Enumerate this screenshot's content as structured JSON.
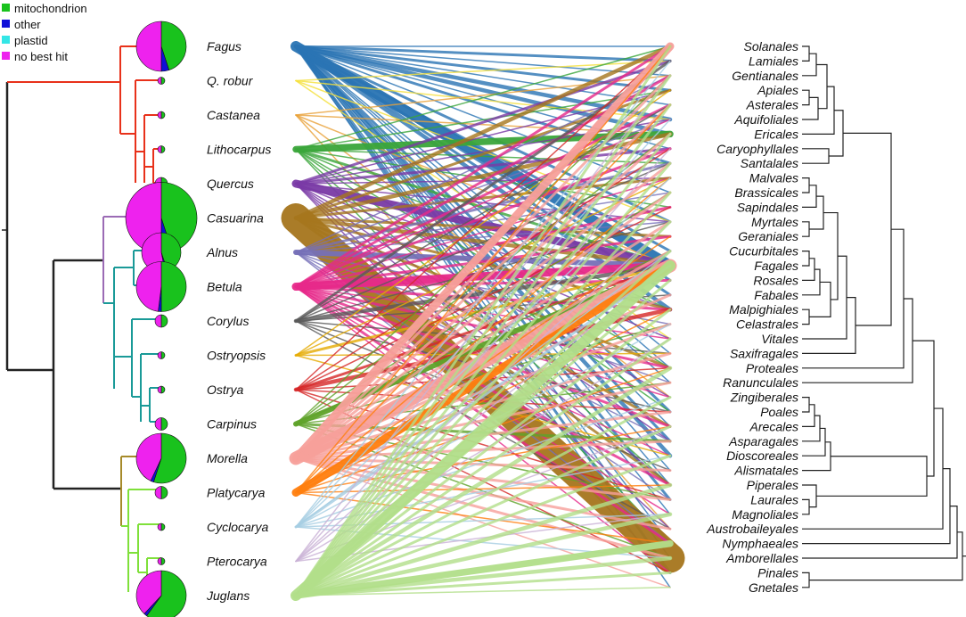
{
  "legend": [
    {
      "label": "mitochondrion",
      "color": "#19c21d"
    },
    {
      "label": "other",
      "color": "#1010d8"
    },
    {
      "label": "plastid",
      "color": "#33e6e6"
    },
    {
      "label": "no best hit",
      "color": "#ee22ee"
    }
  ],
  "left_taxa": [
    {
      "name": "Fagus",
      "color": "#2a74b4",
      "size": 3,
      "pie": [
        0.45,
        0.05,
        0.0,
        0.5
      ]
    },
    {
      "name": "Q. robur",
      "color": "#f5e03a",
      "size": 0,
      "pie": [
        0.5,
        0.0,
        0.0,
        0.5
      ]
    },
    {
      "name": "Castanea",
      "color": "#e9a23a",
      "size": 0,
      "pie": [
        0.5,
        0.0,
        0.0,
        0.5
      ]
    },
    {
      "name": "Lithocarpus",
      "color": "#3aa63a",
      "size": 0,
      "pie": [
        0.5,
        0.0,
        0.0,
        0.5
      ]
    },
    {
      "name": "Quercus",
      "color": "#7a3aa6",
      "size": 1,
      "pie": [
        0.5,
        0.0,
        0.0,
        0.5
      ]
    },
    {
      "name": "Casuarina",
      "color": "#a6761d",
      "size": 4,
      "pie": [
        0.45,
        0.05,
        0.0,
        0.5
      ]
    },
    {
      "name": "Alnus",
      "color": "#7670b8",
      "size": 2,
      "pie": [
        0.45,
        0.02,
        0.0,
        0.53
      ]
    },
    {
      "name": "Betula",
      "color": "#e7298a",
      "size": 3,
      "pie": [
        0.5,
        0.02,
        0.0,
        0.48
      ]
    },
    {
      "name": "Corylus",
      "color": "#5a5a5a",
      "size": 1,
      "pie": [
        0.5,
        0.0,
        0.0,
        0.5
      ]
    },
    {
      "name": "Ostryopsis",
      "color": "#e6ab02",
      "size": 0,
      "pie": [
        0.5,
        0.0,
        0.0,
        0.5
      ]
    },
    {
      "name": "Ostrya",
      "color": "#d62728",
      "size": 0,
      "pie": [
        0.5,
        0.0,
        0.0,
        0.5
      ]
    },
    {
      "name": "Carpinus",
      "color": "#5fa32a",
      "size": 1,
      "pie": [
        0.5,
        0.0,
        0.0,
        0.5
      ]
    },
    {
      "name": "Morella",
      "color": "#f7a09a",
      "size": 3,
      "pie": [
        0.55,
        0.02,
        0.0,
        0.43
      ]
    },
    {
      "name": "Platycarya",
      "color": "#ff7f0e",
      "size": 1,
      "pie": [
        0.5,
        0.0,
        0.0,
        0.5
      ]
    },
    {
      "name": "Cyclocarya",
      "color": "#a6cee3",
      "size": 0,
      "pie": [
        0.5,
        0.0,
        0.0,
        0.5
      ]
    },
    {
      "name": "Pterocarya",
      "color": "#cab2d6",
      "size": 0,
      "pie": [
        0.5,
        0.0,
        0.0,
        0.5
      ]
    },
    {
      "name": "Juglans",
      "color": "#b2df8a",
      "size": 3,
      "pie": [
        0.6,
        0.02,
        0.0,
        0.38
      ]
    }
  ],
  "right_orders": [
    "Solanales",
    "Lamiales",
    "Gentianales",
    "Apiales",
    "Asterales",
    "Aquifoliales",
    "Ericales",
    "Caryophyllales",
    "Santalales",
    "Malvales",
    "Brassicales",
    "Sapindales",
    "Myrtales",
    "Geraniales",
    "Cucurbitales",
    "Fagales",
    "Rosales",
    "Fabales",
    "Malpighiales",
    "Celastrales",
    "Vitales",
    "Saxifragales",
    "Proteales",
    "Ranunculales",
    "Zingiberales",
    "Poales",
    "Arecales",
    "Asparagales",
    "Dioscoreales",
    "Alismatales",
    "Piperales",
    "Laurales",
    "Magnoliales",
    "Austrobaileyales",
    "Nymphaeales",
    "Amborellales",
    "Pinales",
    "Gnetales"
  ],
  "links": [
    {
      "from": 0,
      "to": [
        0,
        1,
        2,
        3,
        4,
        5,
        6,
        7,
        8,
        10,
        12,
        14,
        15,
        16,
        17,
        18,
        21,
        22,
        23,
        25,
        26,
        27,
        28,
        29,
        30,
        31,
        32,
        34,
        35,
        36,
        37
      ],
      "w": [
        1,
        2,
        1,
        2,
        1,
        3,
        3,
        1,
        2,
        1,
        2,
        2,
        8,
        2,
        2,
        3,
        1,
        1,
        1,
        2,
        1,
        2,
        3,
        1,
        1,
        2,
        1,
        1,
        1,
        2,
        1
      ]
    },
    {
      "from": 1,
      "to": [
        1,
        5,
        12,
        20
      ],
      "w": [
        1,
        1,
        1,
        1
      ]
    },
    {
      "from": 2,
      "to": [
        2,
        6,
        15,
        24,
        33
      ],
      "w": [
        1,
        1,
        1,
        1,
        1
      ]
    },
    {
      "from": 3,
      "to": [
        0,
        3,
        6,
        8,
        11,
        15,
        18,
        22,
        25,
        30,
        34
      ],
      "w": [
        1,
        1,
        5,
        1,
        1,
        2,
        1,
        1,
        1,
        1,
        1
      ]
    },
    {
      "from": 4,
      "to": [
        1,
        3,
        5,
        7,
        9,
        12,
        15,
        18,
        20,
        24,
        27,
        30,
        33,
        36
      ],
      "w": [
        2,
        1,
        1,
        2,
        1,
        1,
        6,
        1,
        1,
        1,
        1,
        1,
        1,
        1
      ]
    },
    {
      "from": 5,
      "to": [
        0,
        3,
        6,
        9,
        13,
        15,
        18,
        22,
        26,
        30,
        35
      ],
      "w": [
        3,
        2,
        3,
        2,
        2,
        3,
        2,
        2,
        2,
        2,
        22
      ]
    },
    {
      "from": 6,
      "to": [
        2,
        5,
        8,
        10,
        12,
        15,
        19,
        23,
        27,
        31,
        34
      ],
      "w": [
        1,
        1,
        2,
        1,
        1,
        4,
        1,
        1,
        1,
        1,
        1
      ]
    },
    {
      "from": 7,
      "to": [
        0,
        2,
        4,
        5,
        7,
        9,
        11,
        13,
        15,
        16,
        18,
        20,
        22,
        24,
        26,
        28,
        30,
        32,
        34,
        36
      ],
      "w": [
        2,
        2,
        2,
        1,
        2,
        1,
        2,
        2,
        6,
        2,
        2,
        1,
        2,
        1,
        2,
        1,
        2,
        1,
        2,
        1
      ]
    },
    {
      "from": 8,
      "to": [
        1,
        4,
        8,
        12,
        15,
        17,
        21,
        25,
        29,
        33
      ],
      "w": [
        2,
        1,
        1,
        1,
        3,
        1,
        1,
        1,
        1,
        1
      ]
    },
    {
      "from": 9,
      "to": [
        3,
        9,
        15,
        21,
        28
      ],
      "w": [
        1,
        1,
        2,
        1,
        1
      ]
    },
    {
      "from": 10,
      "to": [
        0,
        7,
        11,
        15,
        18,
        22,
        25,
        31,
        36
      ],
      "w": [
        1,
        1,
        1,
        2,
        3,
        1,
        1,
        1,
        1
      ]
    },
    {
      "from": 11,
      "to": [
        2,
        6,
        10,
        14,
        15,
        19,
        23,
        27,
        31,
        35
      ],
      "w": [
        1,
        1,
        1,
        1,
        4,
        1,
        1,
        2,
        1,
        1
      ]
    },
    {
      "from": 12,
      "to": [
        0,
        2,
        4,
        6,
        8,
        10,
        12,
        14,
        15,
        17,
        19,
        21,
        23,
        25,
        27,
        29,
        31,
        33,
        35,
        37
      ],
      "w": [
        6,
        2,
        2,
        2,
        2,
        2,
        2,
        2,
        10,
        2,
        2,
        2,
        2,
        2,
        2,
        2,
        2,
        2,
        2,
        1
      ]
    },
    {
      "from": 13,
      "to": [
        0,
        4,
        9,
        13,
        15,
        18,
        22,
        26,
        30,
        34
      ],
      "w": [
        1,
        1,
        1,
        1,
        6,
        1,
        1,
        1,
        1,
        1
      ]
    },
    {
      "from": 14,
      "to": [
        1,
        5,
        9,
        14,
        15,
        19,
        24,
        28,
        32,
        35
      ],
      "w": [
        1,
        1,
        1,
        1,
        2,
        1,
        1,
        1,
        1,
        1
      ]
    },
    {
      "from": 15,
      "to": [
        2,
        7,
        12,
        15,
        20,
        26,
        32
      ],
      "w": [
        1,
        1,
        1,
        1,
        1,
        1,
        1
      ]
    },
    {
      "from": 16,
      "to": [
        0,
        2,
        4,
        6,
        8,
        10,
        12,
        14,
        15,
        16,
        18,
        20,
        22,
        24,
        26,
        28,
        30,
        32,
        34,
        35,
        36,
        37
      ],
      "w": [
        2,
        2,
        2,
        2,
        2,
        2,
        2,
        2,
        8,
        2,
        2,
        2,
        3,
        2,
        2,
        2,
        3,
        3,
        5,
        3,
        2,
        1
      ]
    }
  ]
}
